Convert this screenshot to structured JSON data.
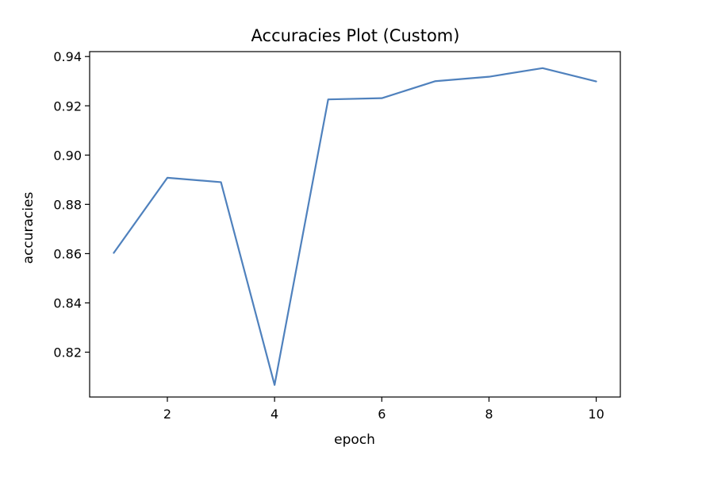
{
  "chart_data": {
    "type": "line",
    "title": "Accuracies Plot (Custom)",
    "xlabel": "epoch",
    "ylabel": "accuracies",
    "x": [
      1,
      2,
      3,
      4,
      5,
      6,
      7,
      8,
      9,
      10
    ],
    "series": [
      {
        "values": [
          0.8603,
          0.8908,
          0.889,
          0.8067,
          0.9226,
          0.9231,
          0.93,
          0.9318,
          0.9353,
          0.9299
        ],
        "color": "#4f81bd"
      }
    ],
    "xlim": [
      0.55,
      10.45
    ],
    "ylim": [
      0.8018,
      0.942
    ],
    "x_ticks": [
      2,
      4,
      6,
      8,
      10
    ],
    "x_tick_labels": [
      "2",
      "4",
      "6",
      "8",
      "10"
    ],
    "y_ticks": [
      0.82,
      0.84,
      0.86,
      0.88,
      0.9,
      0.92,
      0.94
    ],
    "y_tick_labels": [
      "0.82",
      "0.84",
      "0.86",
      "0.88",
      "0.90",
      "0.92",
      "0.94"
    ],
    "grid": false,
    "legend": false
  }
}
